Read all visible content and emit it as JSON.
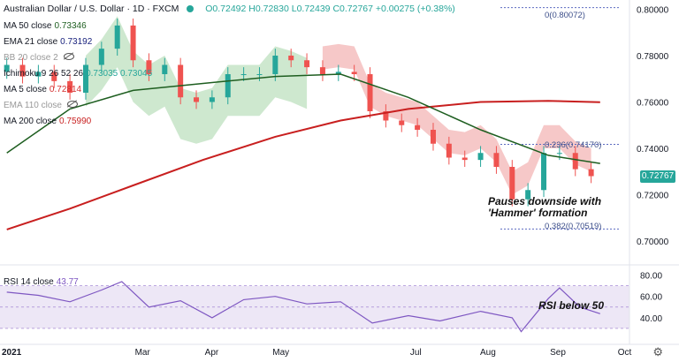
{
  "header": {
    "symbol": "Australian Dollar / U.S. Dollar · 1D · FXCM",
    "ohlc": "O0.72492 H0.72830 L0.72439 C0.72767 +0.00275 (+0.38%)"
  },
  "legend": [
    {
      "label": "MA 50 close",
      "value": "0.73346"
    },
    {
      "label": "EMA 21 close",
      "value": "0.73192"
    },
    {
      "label": "BB 20 close 2",
      "value": ""
    },
    {
      "label": "Ichimoku 9 26 52 26",
      "value": "0.73035 0.73045"
    },
    {
      "label": "MA 5 close",
      "value": "0.72814"
    },
    {
      "label": "EMA 110 close",
      "value": ""
    },
    {
      "label": "MA 200 close",
      "value": "0.75990"
    }
  ],
  "annotations": {
    "hammer_line1": "Pauses downside with",
    "hammer_line2": "'Hammer' formation",
    "rsi_note": "RSI below 50"
  },
  "fib_labels": {
    "f0": "0(0.80072)",
    "f236": "0.236(0.74170)",
    "f382": "0.382(0.70519)"
  },
  "last_price": "0.72767",
  "rsi_legend": {
    "label": "RSI 14 close",
    "value": "43.77"
  },
  "colors": {
    "up": "#26a69a",
    "down": "#ef5350",
    "ma200": "#c81f1f",
    "ma50": "#1e5e20",
    "ema21": "#1a237e",
    "rsi": "#7e57c2",
    "cloud_bull": "#a5d6a7",
    "cloud_bear": "#ef9a9a"
  },
  "chart_data": [
    {
      "type": "candlestick",
      "title": "Australian Dollar / U.S. Dollar · 1D · FXCM",
      "x_ticks": [
        "2021",
        "Mar",
        "Apr",
        "May",
        "Jul",
        "Aug",
        "Sep",
        "Oct"
      ],
      "y_ticks": [
        "0.80000",
        "0.78000",
        "0.76000",
        "0.74000",
        "0.72000",
        "0.70000"
      ],
      "ylim": [
        0.692,
        0.804
      ],
      "grid": false,
      "series": [
        {
          "name": "close",
          "x": [
            "2021-01-04",
            "2021-01-11",
            "2021-01-18",
            "2021-01-25",
            "2021-02-01",
            "2021-02-08",
            "2021-02-15",
            "2021-02-22",
            "2021-03-01",
            "2021-03-08",
            "2021-03-15",
            "2021-03-22",
            "2021-03-29",
            "2021-04-05",
            "2021-04-12",
            "2021-04-19",
            "2021-04-26",
            "2021-05-03",
            "2021-05-10",
            "2021-05-17",
            "2021-05-24",
            "2021-05-31",
            "2021-06-07",
            "2021-06-14",
            "2021-06-21",
            "2021-06-28",
            "2021-07-05",
            "2021-07-12",
            "2021-07-19",
            "2021-07-26",
            "2021-08-02",
            "2021-08-09",
            "2021-08-16",
            "2021-08-23",
            "2021-08-30",
            "2021-09-06",
            "2021-09-13",
            "2021-09-20"
          ],
          "values": [
            0.776,
            0.771,
            0.773,
            0.769,
            0.764,
            0.776,
            0.783,
            0.793,
            0.778,
            0.772,
            0.776,
            0.762,
            0.76,
            0.762,
            0.772,
            0.772,
            0.772,
            0.78,
            0.778,
            0.775,
            0.772,
            0.773,
            0.772,
            0.756,
            0.752,
            0.75,
            0.748,
            0.742,
            0.736,
            0.735,
            0.738,
            0.732,
            0.718,
            0.722,
            0.738,
            0.738,
            0.731,
            0.728
          ]
        },
        {
          "name": "MA 200 close",
          "x": [
            "2021-01-04",
            "2021-02-01",
            "2021-03-01",
            "2021-04-01",
            "2021-05-03",
            "2021-06-01",
            "2021-07-01",
            "2021-08-02",
            "2021-09-01",
            "2021-09-24"
          ],
          "values": [
            0.705,
            0.714,
            0.724,
            0.735,
            0.745,
            0.752,
            0.757,
            0.76,
            0.7605,
            0.7599
          ]
        },
        {
          "name": "MA 50 close",
          "x": [
            "2021-01-04",
            "2021-02-01",
            "2021-03-01",
            "2021-04-01",
            "2021-05-03",
            "2021-06-01",
            "2021-07-01",
            "2021-08-02",
            "2021-09-01",
            "2021-09-24"
          ],
          "values": [
            0.738,
            0.757,
            0.765,
            0.768,
            0.771,
            0.772,
            0.762,
            0.748,
            0.737,
            0.7335
          ]
        }
      ],
      "annotations": [
        "Pauses downside with",
        "'Hammer' formation"
      ],
      "fib_levels": [
        {
          "label": "0(0.80072)",
          "value": 0.80072
        },
        {
          "label": "0.236(0.74170)",
          "value": 0.7417
        },
        {
          "label": "0.382(0.70519)",
          "value": 0.70519
        }
      ],
      "last": 0.72767
    },
    {
      "type": "line",
      "title": "RSI 14 close",
      "y_ticks": [
        "80.00",
        "60.00",
        "40.00"
      ],
      "ylim": [
        20,
        83
      ],
      "series": [
        {
          "name": "RSI 14 close",
          "x": [
            "2021-01-04",
            "2021-01-18",
            "2021-02-01",
            "2021-02-15",
            "2021-02-24",
            "2021-03-08",
            "2021-03-22",
            "2021-04-05",
            "2021-04-19",
            "2021-05-03",
            "2021-05-17",
            "2021-06-01",
            "2021-06-15",
            "2021-07-01",
            "2021-07-15",
            "2021-08-02",
            "2021-08-16",
            "2021-08-20",
            "2021-09-01",
            "2021-09-06",
            "2021-09-15",
            "2021-09-24"
          ],
          "values": [
            64,
            61,
            55,
            66,
            74,
            50,
            56,
            40,
            57,
            60,
            53,
            55,
            35,
            42,
            37,
            46,
            40,
            27,
            58,
            68,
            50,
            43.77
          ]
        }
      ],
      "annotations": [
        "RSI below 50"
      ]
    }
  ]
}
